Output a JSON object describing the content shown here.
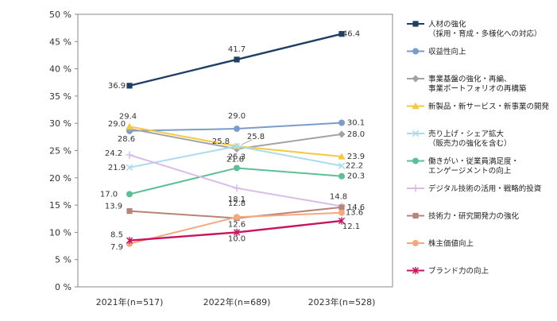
{
  "chart_data": {
    "type": "line",
    "x": [
      "2021年(n=517)",
      "2022年(n=689)",
      "2023年(n=528)"
    ],
    "y_tick_labels": [
      "0 %",
      "5 %",
      "10 %",
      "15 %",
      "20 %",
      "25 %",
      "30 %",
      "35 %",
      "40 %",
      "45 %",
      "50 %"
    ],
    "ylim": [
      0,
      50
    ],
    "grid": false,
    "legend_position": "right",
    "series": [
      {
        "name": "人材の強化\n（採用・育成・多様化への対応）",
        "values": [
          36.9,
          41.7,
          46.4
        ],
        "color": "#1f3f66",
        "marker": "square"
      },
      {
        "name": "収益性向上",
        "values": [
          28.6,
          29.0,
          30.1
        ],
        "color": "#7a9ccb",
        "marker": "circle"
      },
      {
        "name": "事業基盤の強化・再編、\n事業ポートフォリオの再構築",
        "values": [
          29.0,
          25.3,
          28.0
        ],
        "color": "#a3a3a3",
        "marker": "diamond"
      },
      {
        "name": "新製品・新サービス・新事業の開発",
        "values": [
          29.4,
          25.8,
          23.9
        ],
        "color": "#f5c842",
        "marker": "triangle"
      },
      {
        "name": "売り上げ・シェア拡大\n（販売力の強化を含む）",
        "values": [
          21.9,
          25.8,
          22.2
        ],
        "color": "#a9dcef",
        "marker": "x"
      },
      {
        "name": "働きがい・従業員満足度・\nエンゲージメントの向上",
        "values": [
          17.0,
          21.8,
          20.3
        ],
        "color": "#5dbf96",
        "marker": "circle"
      },
      {
        "name": "デジタル技術の活用・戦略的投資",
        "values": [
          24.2,
          18.1,
          14.8
        ],
        "color": "#d8bde8",
        "marker": "plus"
      },
      {
        "name": "技術力・研究開発力の強化",
        "values": [
          13.9,
          12.6,
          14.6
        ],
        "color": "#b8847a",
        "marker": "square"
      },
      {
        "name": "株主価値向上",
        "values": [
          7.9,
          12.8,
          13.6
        ],
        "color": "#f4a87c",
        "marker": "circle"
      },
      {
        "name": "ブランド力の向上",
        "values": [
          8.5,
          10.0,
          12.1
        ],
        "color": "#c8155d",
        "marker": "asterisk"
      }
    ],
    "data_labels": [
      [
        "36.9",
        "41.7",
        "46.4"
      ],
      [
        "28.6",
        "29.0",
        "30.1"
      ],
      [
        "29.0",
        "25.3",
        "28.0"
      ],
      [
        "29.4",
        "25.8",
        "23.9"
      ],
      [
        "21.9",
        "25.8",
        "22.2"
      ],
      [
        "17.0",
        "21.8",
        "20.3"
      ],
      [
        "24.2",
        "18.1",
        "14.8"
      ],
      [
        "13.9",
        "12.6",
        "14.6"
      ],
      [
        "7.9",
        "12.8",
        "13.6"
      ],
      [
        "8.5",
        "10.0",
        "12.1"
      ]
    ]
  }
}
